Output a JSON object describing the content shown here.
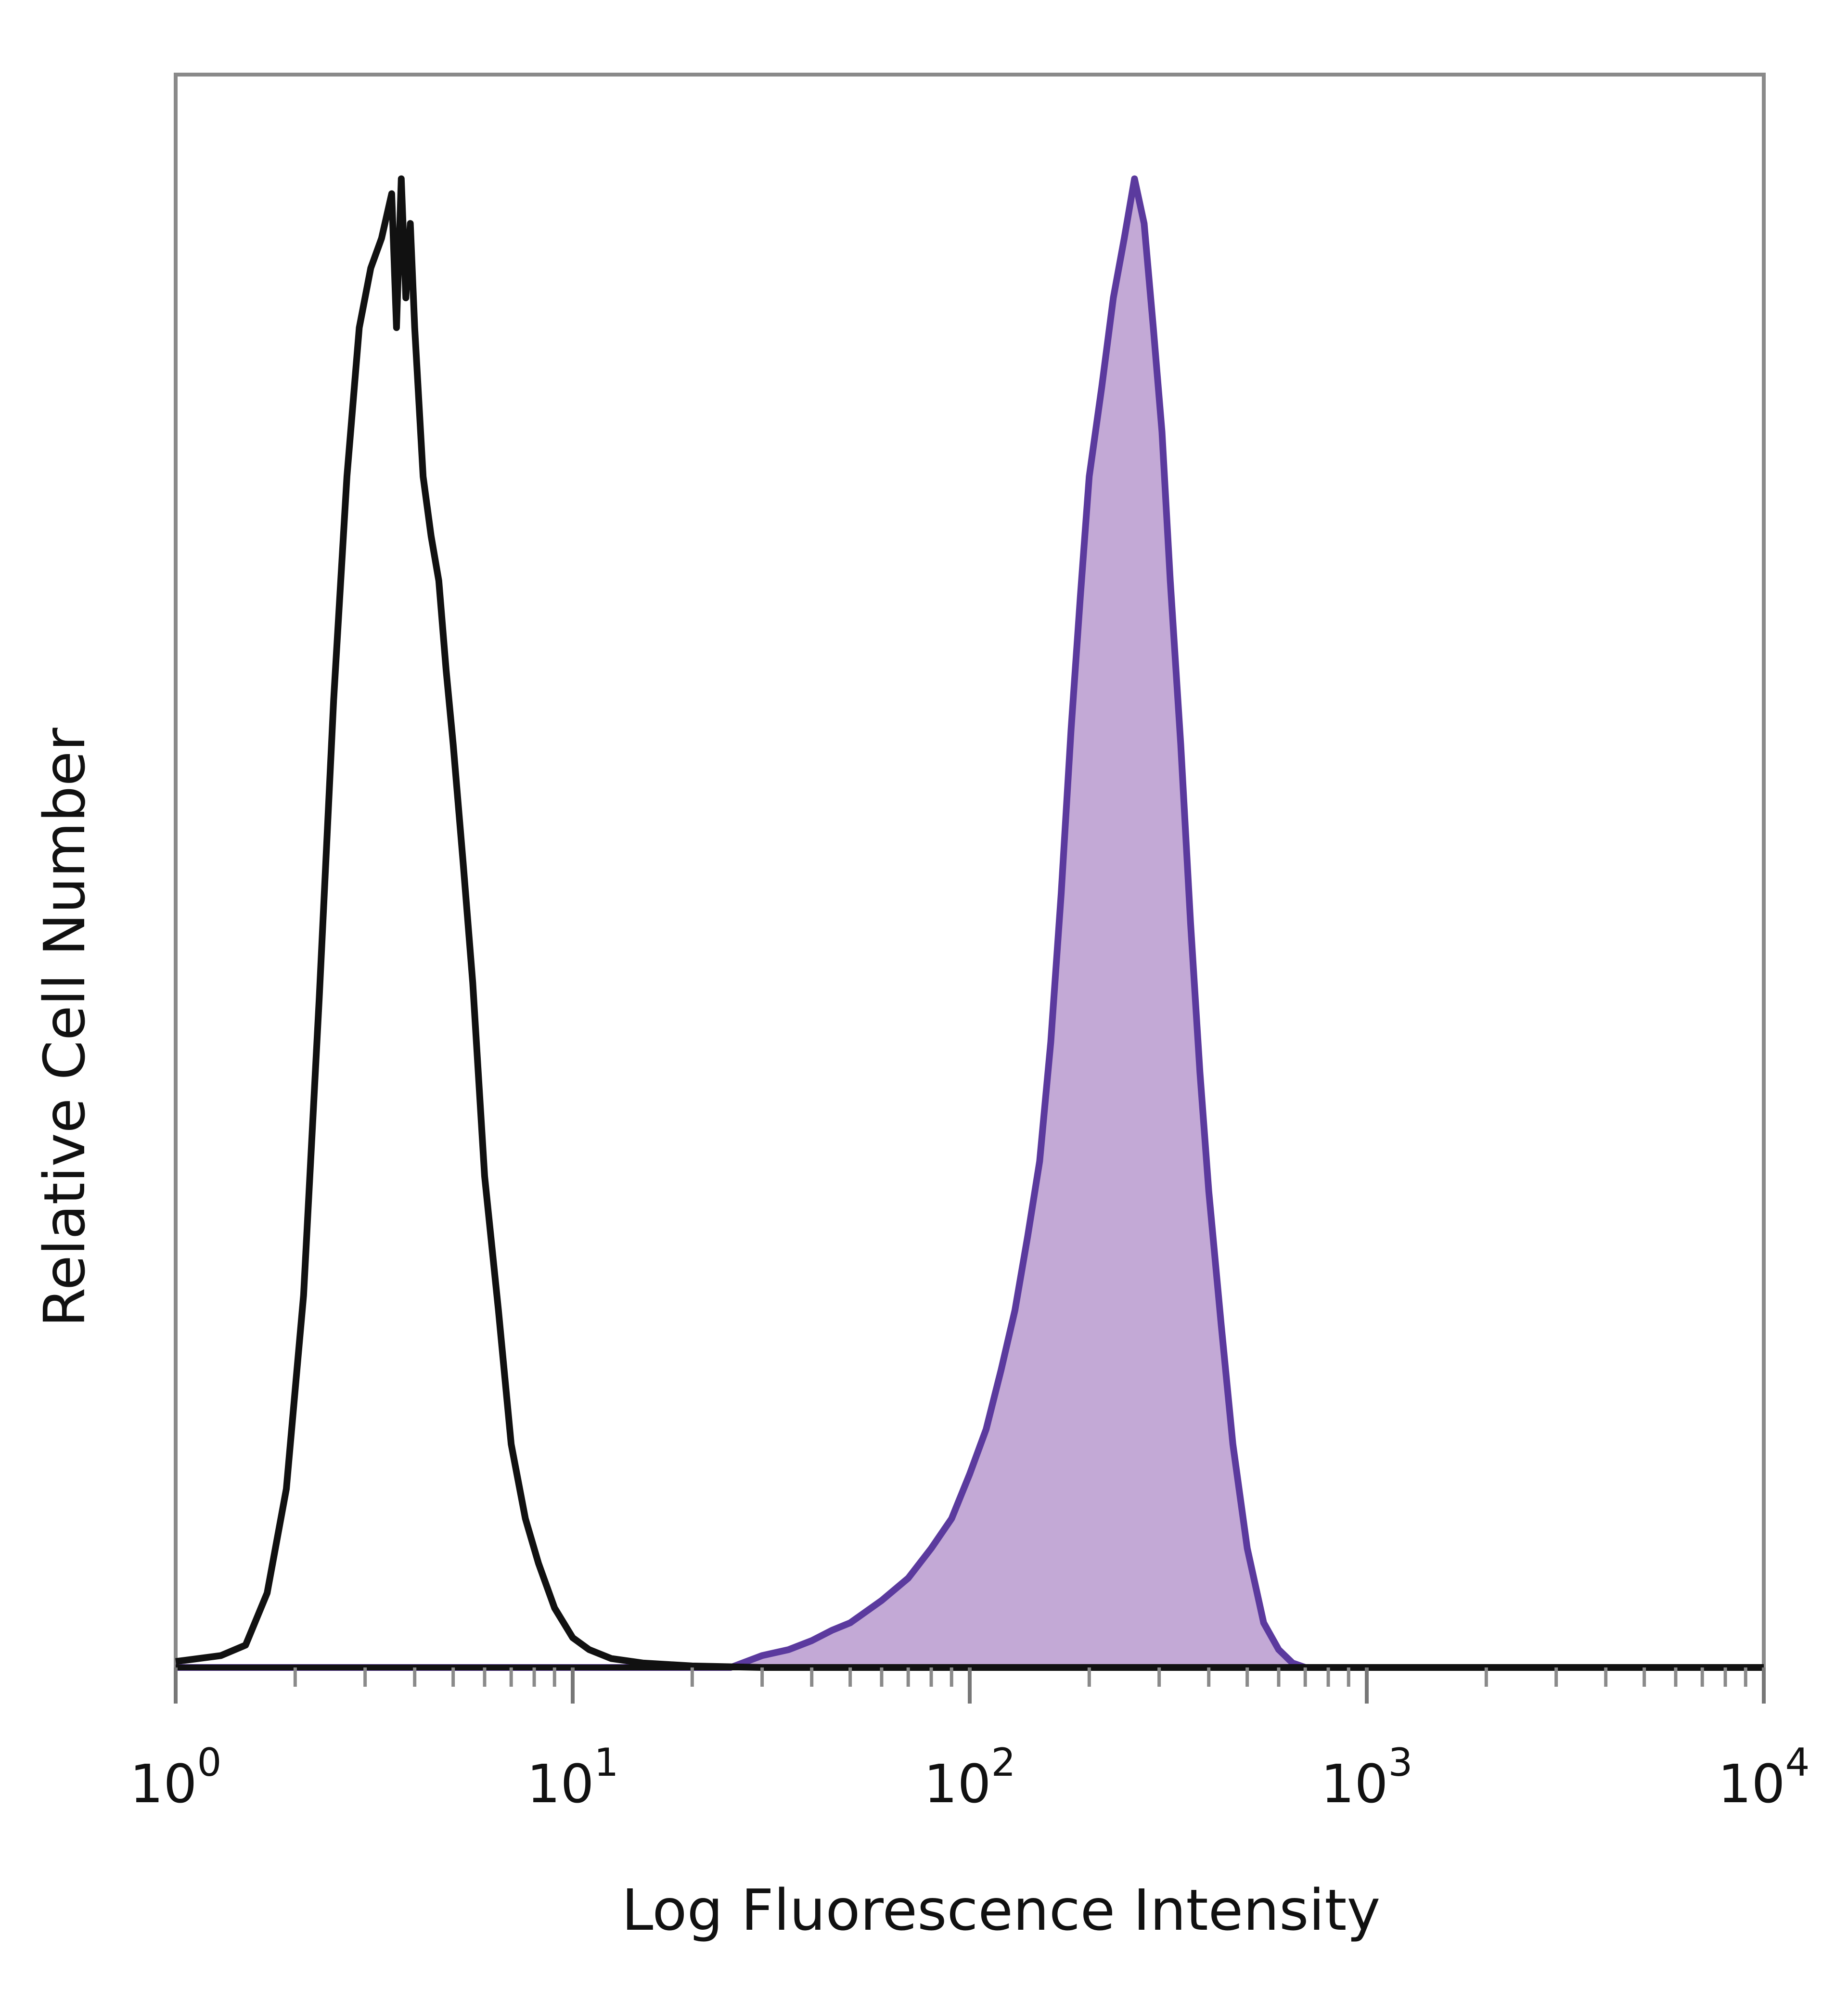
{
  "chart_data": {
    "type": "area",
    "xlabel": "Log Fluorescence Intensity",
    "ylabel": "Relative Cell Number",
    "x_scale": "log",
    "xlim": [
      1,
      10000
    ],
    "ylim": [
      0,
      1.07
    ],
    "grid": false,
    "legend": "none",
    "x_ticks": [
      {
        "base": "10",
        "exp": "0",
        "value": 1
      },
      {
        "base": "10",
        "exp": "1",
        "value": 10
      },
      {
        "base": "10",
        "exp": "2",
        "value": 100
      },
      {
        "base": "10",
        "exp": "3",
        "value": 1000
      },
      {
        "base": "10",
        "exp": "4",
        "value": 10000
      }
    ],
    "series": [
      {
        "style": "outline",
        "color": "#111111",
        "points": [
          [
            1.0,
            0.004
          ],
          [
            1.3,
            0.008
          ],
          [
            1.5,
            0.015
          ],
          [
            1.7,
            0.05
          ],
          [
            1.9,
            0.12
          ],
          [
            2.1,
            0.25
          ],
          [
            2.3,
            0.45
          ],
          [
            2.5,
            0.65
          ],
          [
            2.7,
            0.8
          ],
          [
            2.9,
            0.9
          ],
          [
            3.1,
            0.94
          ],
          [
            3.3,
            0.96
          ],
          [
            3.5,
            0.99
          ],
          [
            3.6,
            0.9
          ],
          [
            3.7,
            1.0
          ],
          [
            3.8,
            0.92
          ],
          [
            3.9,
            0.97
          ],
          [
            4.0,
            0.9
          ],
          [
            4.2,
            0.8
          ],
          [
            4.4,
            0.76
          ],
          [
            4.6,
            0.73
          ],
          [
            4.8,
            0.67
          ],
          [
            5.0,
            0.62
          ],
          [
            5.3,
            0.54
          ],
          [
            5.6,
            0.46
          ],
          [
            6.0,
            0.33
          ],
          [
            6.5,
            0.24
          ],
          [
            7.0,
            0.15
          ],
          [
            7.6,
            0.1
          ],
          [
            8.2,
            0.07
          ],
          [
            9.0,
            0.04
          ],
          [
            10.0,
            0.02
          ],
          [
            11.0,
            0.012
          ],
          [
            12.5,
            0.006
          ],
          [
            15,
            0.003
          ],
          [
            20,
            0.001
          ],
          [
            30,
            0.0
          ],
          [
            10000,
            0.0
          ]
        ]
      },
      {
        "style": "filled",
        "color": "#5b3a9e",
        "fill": "#c3a9d6",
        "points": [
          [
            1.0,
            0.0
          ],
          [
            25,
            0.0
          ],
          [
            30,
            0.008
          ],
          [
            35,
            0.012
          ],
          [
            40,
            0.018
          ],
          [
            45,
            0.025
          ],
          [
            50,
            0.03
          ],
          [
            60,
            0.045
          ],
          [
            70,
            0.06
          ],
          [
            80,
            0.08
          ],
          [
            90,
            0.1
          ],
          [
            100,
            0.13
          ],
          [
            110,
            0.16
          ],
          [
            120,
            0.2
          ],
          [
            130,
            0.24
          ],
          [
            140,
            0.29
          ],
          [
            150,
            0.34
          ],
          [
            160,
            0.42
          ],
          [
            170,
            0.52
          ],
          [
            180,
            0.63
          ],
          [
            190,
            0.72
          ],
          [
            200,
            0.8
          ],
          [
            215,
            0.86
          ],
          [
            230,
            0.92
          ],
          [
            245,
            0.96
          ],
          [
            260,
            1.0
          ],
          [
            275,
            0.97
          ],
          [
            290,
            0.9
          ],
          [
            305,
            0.83
          ],
          [
            320,
            0.73
          ],
          [
            340,
            0.62
          ],
          [
            360,
            0.5
          ],
          [
            380,
            0.4
          ],
          [
            400,
            0.32
          ],
          [
            430,
            0.23
          ],
          [
            460,
            0.15
          ],
          [
            500,
            0.08
          ],
          [
            550,
            0.03
          ],
          [
            600,
            0.012
          ],
          [
            650,
            0.003
          ],
          [
            700,
            0.0
          ],
          [
            10000,
            0.0
          ]
        ]
      }
    ]
  }
}
